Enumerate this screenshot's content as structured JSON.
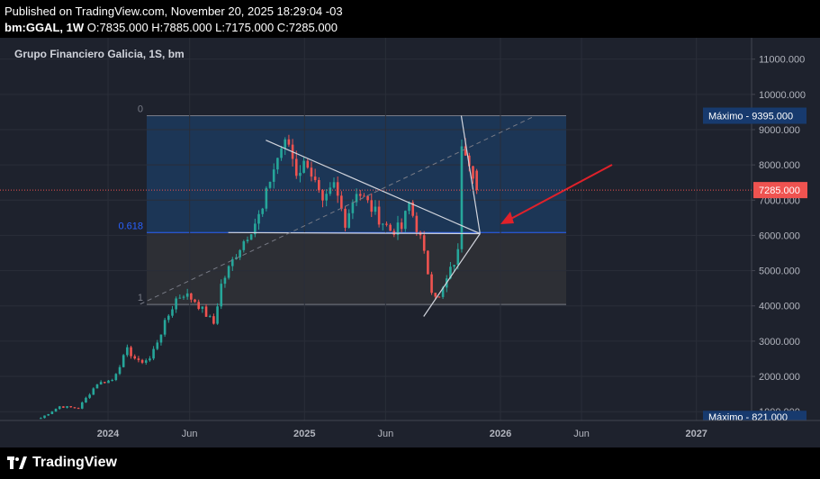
{
  "header": {
    "published": "Published on TradingView.com, November 20, 2025 18:29:04 -03",
    "symbol_line": "bm:GGAL, 1W",
    "ohlc": "O:7835.000 H:7885.000 L:7175.000 C:7285.000"
  },
  "chart_title": "Grupo Financiero Galicia, 1S, bm",
  "footer": {
    "brand": "TradingView"
  },
  "colors": {
    "background": "#1e222d",
    "up": "#26a69a",
    "down": "#ef5350",
    "fib_top_zone": "#1c3a5e",
    "fib_bottom_zone": "#2f3136",
    "arrow": "#e0212a",
    "price_label": "#ef5350"
  },
  "chart_data": {
    "type": "candlestick",
    "title": "Grupo Financiero Galicia, 1S, bm",
    "y_ticks": [
      "11000.000",
      "10000.000",
      "9000.000",
      "8000.000",
      "7000.000",
      "6000.000",
      "5000.000",
      "4000.000",
      "3000.000",
      "2000.000",
      "1000.000"
    ],
    "ylim": [
      750,
      11400
    ],
    "x_ticks": [
      "2024",
      "Jun",
      "2025",
      "Jun",
      "2026",
      "Jun",
      "2027"
    ],
    "x_tick_dates": [
      "2024-01-01",
      "2024-06-01",
      "2025-01-01",
      "2025-06-01",
      "2026-01-01",
      "2026-06-01",
      "2027-01-01"
    ],
    "last_price": "7285.000",
    "max_label": "Máximo - 9395.000",
    "min_label": "Máximo - 821.000",
    "fib_levels": [
      {
        "label": "0",
        "price": 9395
      },
      {
        "label": "0.618",
        "price": 6080
      },
      {
        "label": "1",
        "price": 4040
      }
    ],
    "anchors": [
      [
        "2023-08-28",
        821
      ],
      [
        "2023-10-02",
        1150
      ],
      [
        "2023-11-06",
        1100
      ],
      [
        "2023-12-11",
        1800
      ],
      [
        "2024-01-08",
        1900
      ],
      [
        "2024-02-05",
        2750
      ],
      [
        "2024-02-26",
        2400
      ],
      [
        "2024-03-18",
        2500
      ],
      [
        "2024-04-15",
        3500
      ],
      [
        "2024-05-06",
        4200
      ],
      [
        "2024-05-20",
        4350
      ],
      [
        "2024-06-10",
        4150
      ],
      [
        "2024-07-01",
        3750
      ],
      [
        "2024-07-15",
        3500
      ],
      [
        "2024-07-29",
        4600
      ],
      [
        "2024-08-26",
        5500
      ],
      [
        "2024-09-23",
        6200
      ],
      [
        "2024-10-14",
        6700
      ],
      [
        "2024-10-28",
        7600
      ],
      [
        "2024-11-18",
        8500
      ],
      [
        "2024-12-02",
        8600
      ],
      [
        "2024-12-16",
        7800
      ],
      [
        "2025-01-06",
        8100
      ],
      [
        "2025-02-03",
        6800
      ],
      [
        "2025-02-24",
        7400
      ],
      [
        "2025-03-17",
        6400
      ],
      [
        "2025-04-07",
        7300
      ],
      [
        "2025-04-28",
        6900
      ],
      [
        "2025-05-19",
        6500
      ],
      [
        "2025-06-09",
        6150
      ],
      [
        "2025-06-30",
        6200
      ],
      [
        "2025-07-14",
        6900
      ],
      [
        "2025-08-04",
        5900
      ],
      [
        "2025-08-25",
        4500
      ],
      [
        "2025-09-08",
        4200
      ],
      [
        "2025-09-29",
        5000
      ],
      [
        "2025-10-13",
        5500
      ],
      [
        "2025-10-20",
        8700
      ],
      [
        "2025-10-27",
        8500
      ],
      [
        "2025-11-10",
        7835
      ],
      [
        "2025-11-17",
        7285
      ]
    ],
    "last_candle": {
      "date": "2025-11-17",
      "open": 7835,
      "high": 7885,
      "low": 7175,
      "close": 7285
    }
  }
}
